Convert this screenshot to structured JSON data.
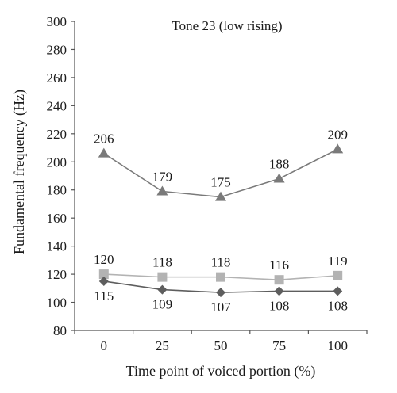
{
  "chart_data": {
    "type": "line",
    "title": "Tone 23 (low rising)",
    "xlabel": "Time point of voiced portion (%)",
    "ylabel": "Fundamental frequency (Hz)",
    "categories": [
      "0",
      "25",
      "50",
      "75",
      "100"
    ],
    "ylim": [
      80,
      300
    ],
    "yticks": [
      80,
      100,
      120,
      140,
      160,
      180,
      200,
      220,
      240,
      260,
      280,
      300
    ],
    "grid": false,
    "legend": "none",
    "series": [
      {
        "marker": "triangle",
        "color": "#7a7a7a",
        "values": [
          206,
          179,
          175,
          188,
          209
        ],
        "labels": [
          "206",
          "179",
          "175",
          "188",
          "209"
        ],
        "label_position": "above"
      },
      {
        "marker": "square",
        "color": "#b3b3b3",
        "values": [
          120,
          118,
          118,
          116,
          119
        ],
        "labels": [
          "120",
          "118",
          "118",
          "116",
          "119"
        ],
        "label_position": "above"
      },
      {
        "marker": "diamond",
        "color": "#5e5e5e",
        "values": [
          115,
          109,
          107,
          108,
          108
        ],
        "labels": [
          "115",
          "109",
          "107",
          "108",
          "108"
        ],
        "label_position": "below"
      }
    ]
  }
}
